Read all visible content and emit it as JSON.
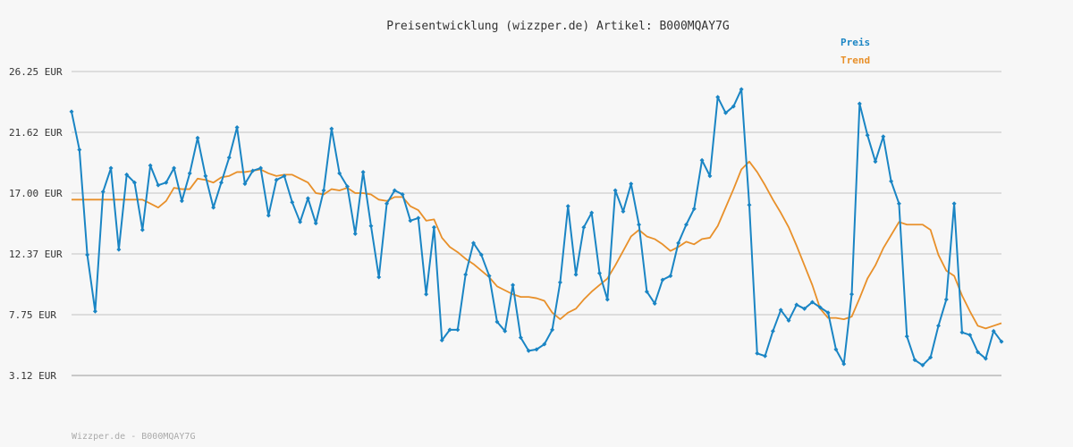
{
  "chart_data": {
    "type": "line",
    "title": "Preisentwicklung (wizzper.de) Artikel: B000MQAY7G",
    "footer": "Wizzper.de - B000MQAY7G",
    "ylim": [
      3.12,
      26.25
    ],
    "ytick_labels": [
      "3.12 EUR",
      "7.75 EUR",
      "12.37 EUR",
      "17.00 EUR",
      "21.62 EUR",
      "26.25 EUR"
    ],
    "ytick_values": [
      3.12,
      7.75,
      12.37,
      17.0,
      21.62,
      26.25
    ],
    "grid": true,
    "legend_position": "top-right",
    "colors": {
      "preis": "#1a85c4",
      "trend": "#e8902a",
      "grid": "#dddddd",
      "axis": "#999999"
    },
    "series": [
      {
        "name": "Preis",
        "values": [
          23.2,
          20.3,
          12.3,
          8.0,
          17.1,
          18.9,
          12.7,
          18.4,
          17.8,
          14.2,
          19.1,
          17.6,
          17.8,
          18.9,
          16.4,
          18.5,
          21.2,
          18.3,
          15.9,
          17.8,
          19.7,
          22.0,
          17.7,
          18.7,
          18.9,
          15.3,
          18.0,
          18.3,
          16.3,
          14.8,
          16.6,
          14.7,
          17.2,
          21.9,
          18.5,
          17.5,
          13.9,
          18.6,
          14.5,
          10.6,
          16.2,
          17.2,
          16.9,
          14.9,
          15.1,
          9.3,
          14.4,
          5.8,
          6.6,
          6.6,
          10.8,
          13.2,
          12.3,
          10.7,
          7.2,
          6.5,
          10.0,
          6.0,
          5.0,
          5.1,
          5.5,
          6.6,
          10.2,
          16.0,
          10.8,
          14.4,
          15.5,
          10.9,
          8.9,
          17.2,
          15.6,
          17.7,
          14.6,
          9.5,
          8.6,
          10.4,
          10.7,
          13.2,
          14.6,
          15.8,
          19.5,
          18.3,
          24.3,
          23.1,
          23.6,
          24.9,
          16.1,
          4.8,
          4.6,
          6.5,
          8.1,
          7.3,
          8.5,
          8.2,
          8.7,
          8.3,
          7.9,
          5.1,
          4.0,
          9.3,
          23.8,
          21.4,
          19.4,
          21.3,
          17.9,
          16.2,
          6.1,
          4.3,
          3.9,
          4.5,
          6.9,
          8.9,
          16.2,
          6.4,
          6.2,
          4.9,
          4.4,
          6.5,
          5.7
        ]
      },
      {
        "name": "Trend",
        "values": [
          16.5,
          16.5,
          16.5,
          16.5,
          16.5,
          16.5,
          16.5,
          16.5,
          16.5,
          16.5,
          16.2,
          15.9,
          16.4,
          17.4,
          17.3,
          17.3,
          18.1,
          18.0,
          17.8,
          18.2,
          18.3,
          18.6,
          18.6,
          18.7,
          18.8,
          18.5,
          18.3,
          18.4,
          18.4,
          18.1,
          17.8,
          17.0,
          16.9,
          17.3,
          17.2,
          17.4,
          17.0,
          17.0,
          16.9,
          16.5,
          16.4,
          16.7,
          16.7,
          16.0,
          15.7,
          14.9,
          15.0,
          13.6,
          12.9,
          12.5,
          12.0,
          11.6,
          11.1,
          10.6,
          9.9,
          9.6,
          9.3,
          9.1,
          9.1,
          9.0,
          8.8,
          7.9,
          7.4,
          7.9,
          8.2,
          8.9,
          9.5,
          10.0,
          10.5,
          11.5,
          12.6,
          13.7,
          14.2,
          13.7,
          13.5,
          13.1,
          12.6,
          12.9,
          13.3,
          13.1,
          13.5,
          13.6,
          14.5,
          15.9,
          17.3,
          18.8,
          19.4,
          18.6,
          17.6,
          16.5,
          15.5,
          14.4,
          13.0,
          11.5,
          10.0,
          8.2,
          7.5,
          7.5,
          7.4,
          7.6,
          9.0,
          10.5,
          11.5,
          12.8,
          13.8,
          14.8,
          14.6,
          14.6,
          14.6,
          14.2,
          12.3,
          11.1,
          10.7,
          9.2,
          8.0,
          6.9,
          6.7,
          6.9,
          7.1
        ]
      }
    ]
  }
}
